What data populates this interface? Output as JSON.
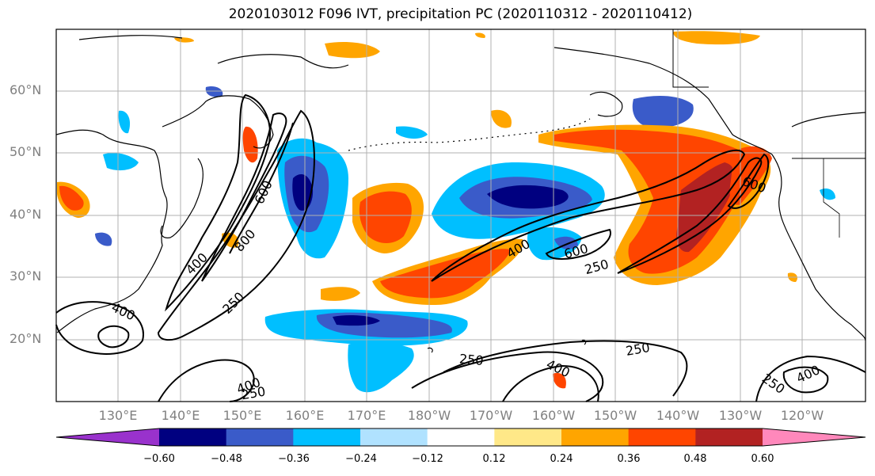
{
  "title": "2020103012 F096 IVT, precipitation PC (2020110312 - 2020110412)",
  "lat_labels": [
    "60°N",
    "50°N",
    "40°N",
    "30°N",
    "20°N"
  ],
  "lon_labels": [
    "130°E",
    "140°E",
    "150°E",
    "160°E",
    "170°E",
    "180°W",
    "170°W",
    "160°W",
    "150°W",
    "140°W",
    "130°W",
    "120°W"
  ],
  "colorbar": {
    "ticks": [
      "−0.60",
      "−0.48",
      "−0.36",
      "−0.24",
      "−0.12",
      "0.12",
      "0.24",
      "0.36",
      "0.48",
      "0.60"
    ],
    "colors": [
      "#9932cc",
      "#000080",
      "#3a5bc9",
      "#00bfff",
      "#b0e2ff",
      "#ffffff",
      "#ffe888",
      "#ffa500",
      "#ff4500",
      "#b22222",
      "#ff88bb"
    ]
  },
  "ivt_contour_labels": {
    "c250": "250",
    "c400": "400",
    "c600": "600",
    "c800": "800"
  },
  "colors": {
    "grid": "#b0b0b0",
    "coast": "#000000",
    "axis_text": "#808080"
  }
}
